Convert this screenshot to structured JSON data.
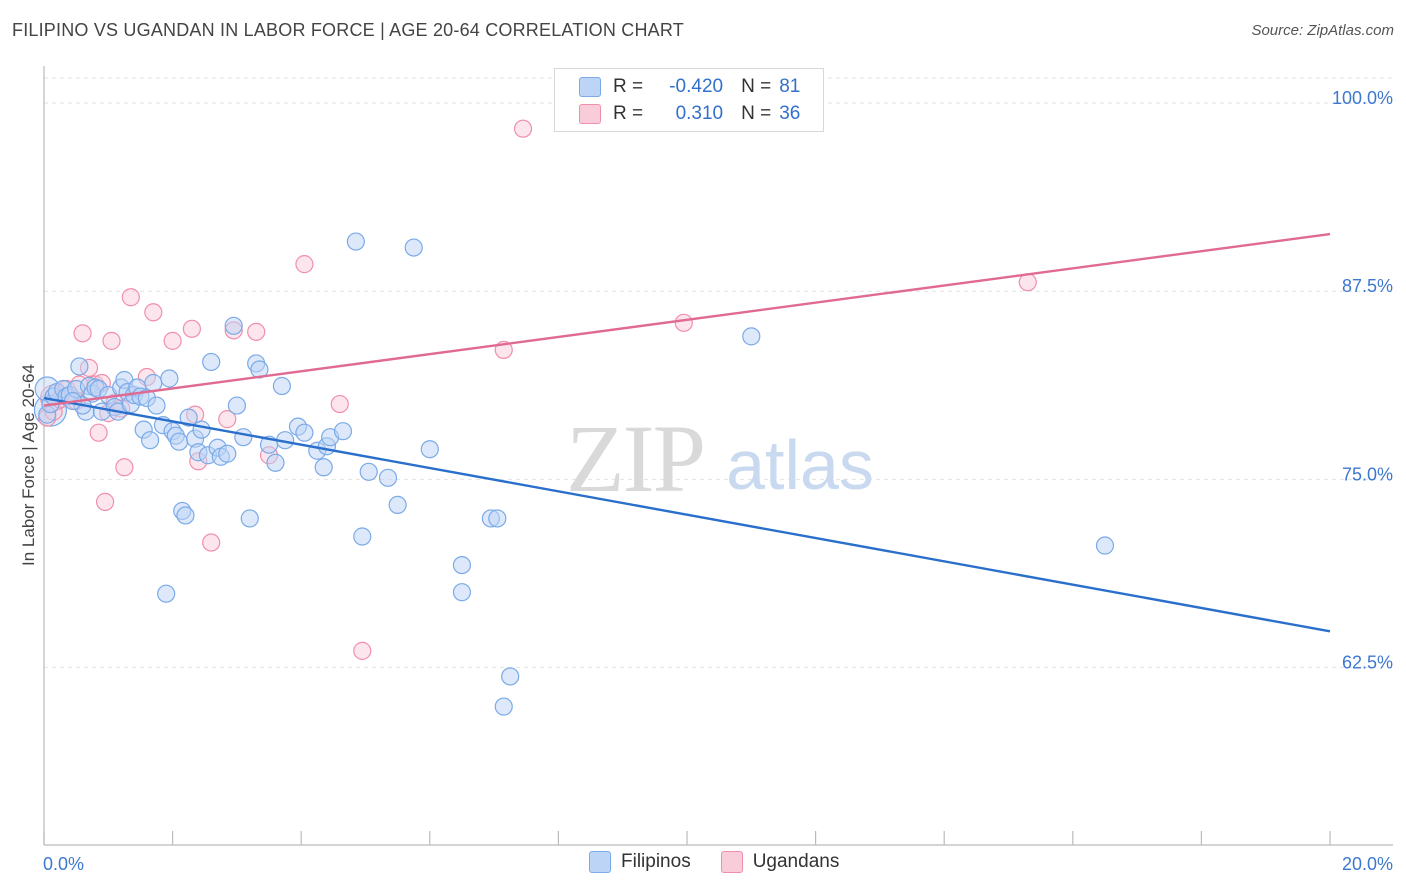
{
  "title": "FILIPINO VS UGANDAN IN LABOR FORCE | AGE 20-64 CORRELATION CHART",
  "source": "Source: ZipAtlas.com",
  "watermark": {
    "zip": "ZIP",
    "atlas": "atlas"
  },
  "legend": {
    "rows": [
      {
        "r_label": "R =",
        "r_value": "-0.420",
        "n_label": "N =",
        "n_value": "81",
        "color": "#7aaae8",
        "fill": "#bcd4f5"
      },
      {
        "r_label": "R =",
        "r_value": "0.310",
        "n_label": "N =",
        "n_value": "36",
        "color": "#f08fab",
        "fill": "#f9ccd9"
      }
    ],
    "series_names": [
      "Filipinos",
      "Ugandans"
    ]
  },
  "chart_data": {
    "type": "scatter",
    "title": "FILIPINO VS UGANDAN IN LABOR FORCE | AGE 20-64 CORRELATION CHART",
    "xlabel": "",
    "ylabel": "In Labor Force | Age 20-64",
    "xlim": [
      0,
      20
    ],
    "ylim": [
      50.7,
      102.2
    ],
    "x_tick_labels": [
      "0.0%",
      "20.0%"
    ],
    "y_ticks": [
      62.5,
      75.0,
      87.5,
      100.0
    ],
    "y_tick_labels": [
      "62.5%",
      "75.0%",
      "87.5%",
      "100.0%"
    ],
    "grid": true,
    "series": [
      {
        "name": "Filipinos",
        "color": "#7aaae8",
        "fill": "#bcd4f5",
        "trend_color": "#2a6fcc",
        "trend": {
          "x0": 0.0,
          "y0": 80.4,
          "x1": 20.0,
          "y1": 64.9
        },
        "points": [
          [
            0.05,
            79.3
          ],
          [
            0.1,
            80.0
          ],
          [
            0.15,
            80.5
          ],
          [
            0.2,
            80.8
          ],
          [
            0.3,
            81.0
          ],
          [
            0.35,
            80.5
          ],
          [
            0.4,
            80.6
          ],
          [
            0.5,
            81.0
          ],
          [
            0.55,
            82.5
          ],
          [
            0.65,
            79.5
          ],
          [
            0.7,
            81.2
          ],
          [
            0.75,
            80.7
          ],
          [
            0.8,
            81.1
          ],
          [
            0.85,
            81.0
          ],
          [
            0.9,
            79.5
          ],
          [
            1.0,
            80.6
          ],
          [
            1.1,
            79.8
          ],
          [
            1.15,
            79.5
          ],
          [
            1.2,
            81.1
          ],
          [
            1.25,
            81.6
          ],
          [
            1.3,
            80.8
          ],
          [
            1.35,
            80.0
          ],
          [
            1.4,
            80.6
          ],
          [
            1.45,
            81.1
          ],
          [
            1.5,
            80.5
          ],
          [
            1.6,
            80.4
          ],
          [
            1.7,
            81.4
          ],
          [
            1.75,
            79.9
          ],
          [
            1.55,
            78.3
          ],
          [
            1.65,
            77.6
          ],
          [
            1.95,
            81.7
          ],
          [
            1.85,
            78.6
          ],
          [
            2.0,
            78.2
          ],
          [
            2.05,
            77.9
          ],
          [
            2.1,
            77.5
          ],
          [
            2.15,
            72.9
          ],
          [
            2.2,
            72.6
          ],
          [
            2.25,
            79.1
          ],
          [
            2.35,
            77.7
          ],
          [
            2.4,
            76.8
          ],
          [
            2.45,
            78.3
          ],
          [
            2.55,
            76.6
          ],
          [
            2.6,
            82.8
          ],
          [
            2.7,
            77.1
          ],
          [
            2.75,
            76.5
          ],
          [
            2.85,
            76.7
          ],
          [
            2.95,
            85.2
          ],
          [
            3.0,
            79.9
          ],
          [
            3.1,
            77.8
          ],
          [
            3.2,
            72.4
          ],
          [
            3.3,
            82.7
          ],
          [
            3.35,
            82.3
          ],
          [
            3.5,
            77.3
          ],
          [
            3.6,
            76.1
          ],
          [
            3.7,
            81.2
          ],
          [
            3.75,
            77.6
          ],
          [
            3.95,
            78.5
          ],
          [
            4.05,
            78.1
          ],
          [
            4.25,
            76.9
          ],
          [
            4.35,
            75.8
          ],
          [
            4.4,
            77.2
          ],
          [
            4.45,
            77.8
          ],
          [
            4.65,
            78.2
          ],
          [
            4.85,
            90.8
          ],
          [
            4.95,
            71.2
          ],
          [
            5.05,
            75.5
          ],
          [
            5.35,
            75.1
          ],
          [
            5.5,
            73.3
          ],
          [
            5.75,
            90.4
          ],
          [
            6.0,
            77.0
          ],
          [
            6.5,
            69.3
          ],
          [
            6.5,
            67.5
          ],
          [
            6.95,
            72.4
          ],
          [
            7.05,
            72.4
          ],
          [
            7.25,
            61.9
          ],
          [
            7.15,
            59.9
          ],
          [
            11.0,
            84.5
          ],
          [
            16.5,
            70.6
          ],
          [
            1.9,
            67.4
          ],
          [
            0.6,
            79.9
          ],
          [
            0.45,
            80.2
          ]
        ]
      },
      {
        "name": "Ugandans",
        "color": "#f08fab",
        "fill": "#f9ccd9",
        "trend_color": "#e06a92",
        "trend": {
          "x0": 0.0,
          "y0": 79.9,
          "x1": 20.0,
          "y1": 91.3
        },
        "points": [
          [
            0.05,
            79.1
          ],
          [
            0.15,
            79.5
          ],
          [
            0.25,
            80.3
          ],
          [
            0.35,
            81.0
          ],
          [
            0.5,
            80.2
          ],
          [
            0.55,
            81.3
          ],
          [
            0.6,
            84.7
          ],
          [
            0.7,
            82.4
          ],
          [
            0.8,
            81.3
          ],
          [
            0.85,
            78.1
          ],
          [
            0.9,
            81.4
          ],
          [
            0.95,
            73.5
          ],
          [
            1.0,
            79.4
          ],
          [
            1.05,
            84.2
          ],
          [
            1.1,
            80.1
          ],
          [
            1.2,
            79.7
          ],
          [
            1.25,
            75.8
          ],
          [
            1.35,
            87.1
          ],
          [
            1.6,
            81.8
          ],
          [
            1.7,
            86.1
          ],
          [
            2.0,
            84.2
          ],
          [
            2.3,
            85.0
          ],
          [
            2.35,
            79.3
          ],
          [
            2.4,
            76.2
          ],
          [
            2.6,
            70.8
          ],
          [
            2.85,
            79.0
          ],
          [
            2.95,
            84.9
          ],
          [
            3.3,
            84.8
          ],
          [
            3.5,
            76.6
          ],
          [
            4.05,
            89.3
          ],
          [
            4.6,
            80.0
          ],
          [
            4.95,
            63.6
          ],
          [
            7.15,
            83.6
          ],
          [
            7.45,
            98.3
          ],
          [
            9.95,
            85.4
          ],
          [
            15.3,
            88.1
          ]
        ]
      }
    ]
  }
}
